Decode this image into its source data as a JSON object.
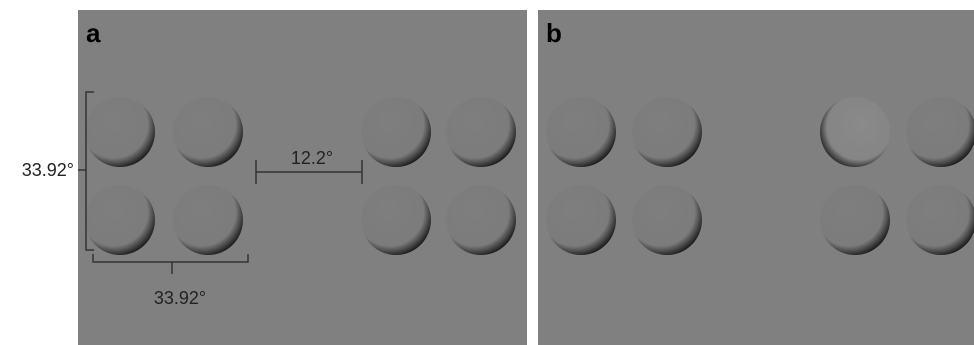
{
  "panels": [
    {
      "label": "a"
    },
    {
      "label": "b"
    }
  ],
  "annotations": {
    "vertical_extent": "33.92°",
    "horizontal_extent": "33.92°",
    "gap": "12.2°"
  }
}
